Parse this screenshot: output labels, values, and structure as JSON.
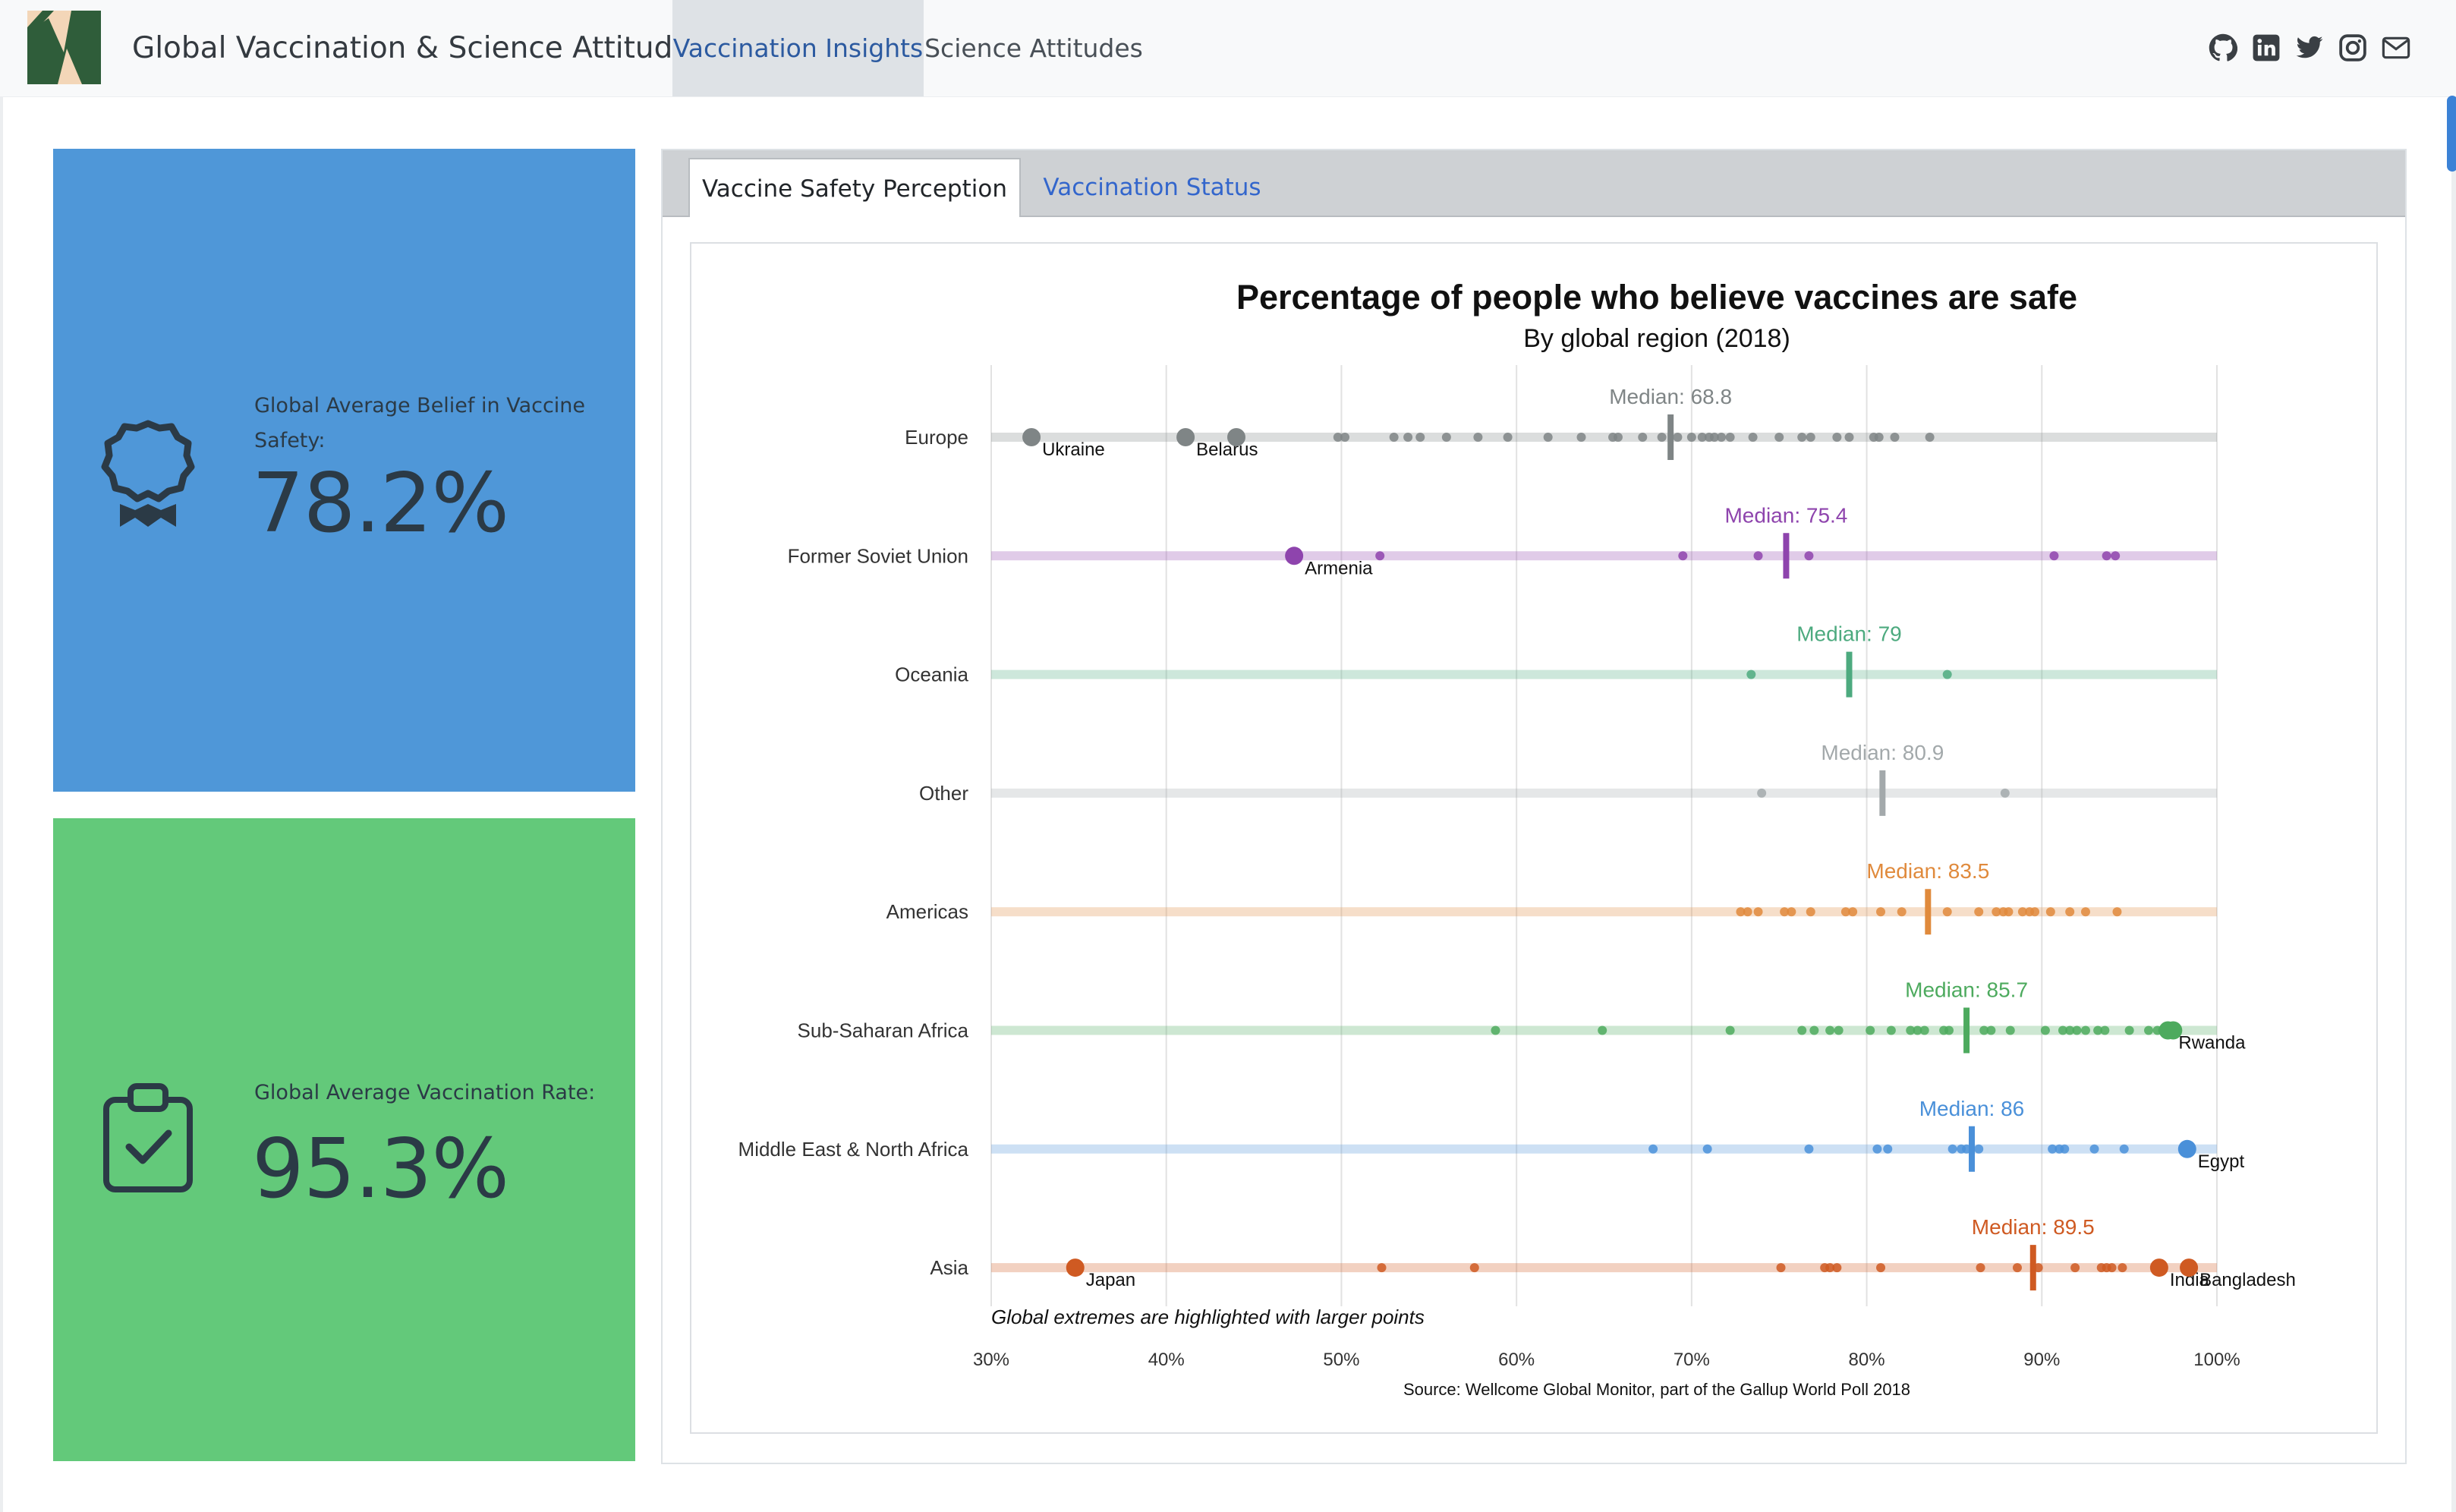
{
  "header": {
    "brand": "Global Vaccination & Science Attitudes",
    "tabs": [
      {
        "label": "Vaccination Insights",
        "active": true
      },
      {
        "label": "Science Attitudes",
        "active": false
      }
    ],
    "social_icons": [
      "github-icon",
      "linkedin-icon",
      "twitter-icon",
      "instagram-icon",
      "mail-icon"
    ]
  },
  "value_boxes": [
    {
      "title": "Global Average Belief in Vaccine Safety:",
      "value": "78.2%",
      "icon": "award-icon",
      "color": "#4f97d8"
    },
    {
      "title": "Global Average Vaccination Rate:",
      "value": "95.3%",
      "icon": "clipboard-check-icon",
      "color": "#63c97a"
    }
  ],
  "panel_tabs": [
    {
      "label": "Vaccine Safety Perception",
      "active": true
    },
    {
      "label": "Vaccination Status",
      "active": false
    }
  ],
  "chart_data": {
    "type": "scatter",
    "title": "Percentage of people who believe vaccines are safe",
    "subtitle": "By global region (2018)",
    "caption": "Global extremes are highlighted with larger points",
    "source": "Source: Wellcome Global Monitor, part of the Gallup World Poll 2018",
    "xlim": [
      30,
      100
    ],
    "x_ticks": [
      "30%",
      "40%",
      "50%",
      "60%",
      "70%",
      "80%",
      "90%",
      "100%"
    ],
    "x_tick_values": [
      30,
      40,
      50,
      60,
      70,
      80,
      90,
      100
    ],
    "grid": true,
    "median_prefix": "Median: ",
    "regions": [
      {
        "name": "Europe",
        "color": "#7f8586",
        "median": 68.8,
        "points": [
          49.8,
          50.2,
          53.0,
          53.8,
          54.5,
          56.0,
          57.8,
          59.5,
          61.8,
          63.7,
          65.5,
          65.8,
          67.2,
          68.3,
          69.2,
          70.0,
          70.6,
          71.0,
          71.3,
          71.7,
          72.2,
          73.5,
          75.0,
          76.3,
          76.8,
          78.3,
          79.0,
          80.4,
          80.7,
          81.6,
          83.6
        ],
        "extremes": [
          {
            "x": 32.3,
            "label": "Ukraine"
          },
          {
            "x": 41.1,
            "label": "Belarus"
          },
          {
            "x": 44.0,
            "label": ""
          }
        ]
      },
      {
        "name": "Former Soviet Union",
        "color": "#8e44ad",
        "median": 75.4,
        "points": [
          52.2,
          69.5,
          73.8,
          76.7,
          90.7,
          93.7,
          94.2
        ],
        "extremes": [
          {
            "x": 47.3,
            "label": "Armenia"
          }
        ]
      },
      {
        "name": "Oceania",
        "color": "#4daa7f",
        "median": 79,
        "points": [
          73.4,
          84.6
        ],
        "extremes": []
      },
      {
        "name": "Other",
        "color": "#a3a9ab",
        "median": 80.9,
        "points": [
          74.0,
          87.9
        ],
        "extremes": []
      },
      {
        "name": "Americas",
        "color": "#e08a3c",
        "median": 83.5,
        "points": [
          72.8,
          73.2,
          73.8,
          75.3,
          75.7,
          76.8,
          78.8,
          79.2,
          80.8,
          82.0,
          84.6,
          86.4,
          87.4,
          87.8,
          88.1,
          88.9,
          89.3,
          89.6,
          90.5,
          91.6,
          92.5,
          94.3
        ],
        "extremes": []
      },
      {
        "name": "Sub-Saharan Africa",
        "color": "#4daa5e",
        "median": 85.7,
        "points": [
          58.8,
          64.9,
          72.2,
          76.3,
          77.0,
          77.9,
          78.4,
          80.2,
          81.4,
          82.5,
          82.9,
          83.3,
          84.4,
          84.7,
          86.7,
          87.1,
          88.2,
          90.2,
          91.2,
          91.6,
          92.0,
          92.5,
          93.2,
          93.6,
          95.0,
          96.1,
          96.6,
          96.9
        ],
        "extremes": [
          {
            "x": 97.2,
            "label": "Rwanda"
          },
          {
            "x": 97.5,
            "label": ""
          }
        ]
      },
      {
        "name": "Middle East & North Africa",
        "color": "#4a90d9",
        "median": 86,
        "points": [
          67.8,
          70.9,
          76.7,
          80.6,
          81.2,
          84.9,
          85.4,
          85.7,
          86.4,
          90.6,
          91.0,
          91.3,
          93.0,
          94.7
        ],
        "extremes": [
          {
            "x": 98.3,
            "label": "Egypt"
          }
        ]
      },
      {
        "name": "Asia",
        "color": "#cf5a22",
        "median": 89.5,
        "points": [
          52.3,
          57.6,
          75.1,
          77.6,
          77.9,
          78.3,
          80.8,
          86.5,
          88.6,
          89.8,
          91.9,
          93.4,
          93.7,
          94.0,
          94.6
        ],
        "extremes": [
          {
            "x": 34.8,
            "label": "Japan"
          },
          {
            "x": 96.7,
            "label": "India"
          },
          {
            "x": 98.4,
            "label": "Bangladesh"
          }
        ]
      }
    ]
  }
}
